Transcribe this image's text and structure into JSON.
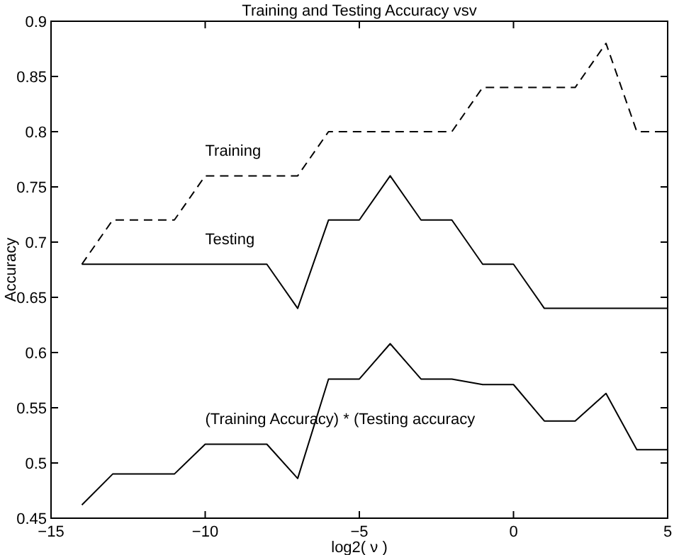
{
  "chart_data": {
    "type": "line",
    "title": "Training and Testing Accuracy vsv",
    "xlabel": "log2( ν )",
    "ylabel": "Accuracy",
    "x": [
      -14,
      -13,
      -12,
      -11,
      -10,
      -9,
      -8,
      -7,
      -6,
      -5,
      -4,
      -3,
      -2,
      -1,
      0,
      1,
      2,
      3,
      4,
      5
    ],
    "xlim": [
      -15,
      5
    ],
    "xticks": [
      -15,
      -10,
      -5,
      0,
      5
    ],
    "ylim": [
      0.45,
      0.9
    ],
    "yticks": [
      0.45,
      0.5,
      0.55,
      0.6,
      0.65,
      0.7,
      0.75,
      0.8,
      0.85,
      0.9
    ],
    "grid": false,
    "series": [
      {
        "name": "Training",
        "color": "#000000",
        "line_style": "dashed",
        "values": [
          0.68,
          0.72,
          0.72,
          0.72,
          0.76,
          0.76,
          0.76,
          0.76,
          0.8,
          0.8,
          0.8,
          0.8,
          0.8,
          0.84,
          0.84,
          0.84,
          0.84,
          0.88,
          0.8,
          0.8
        ]
      },
      {
        "name": "Testing",
        "color": "#000000",
        "line_style": "solid",
        "values": [
          0.68,
          0.68,
          0.68,
          0.68,
          0.68,
          0.68,
          0.68,
          0.64,
          0.72,
          0.72,
          0.76,
          0.72,
          0.72,
          0.68,
          0.68,
          0.64,
          0.64,
          0.64,
          0.64,
          0.64
        ]
      },
      {
        "name": "(Training Accuracy) * (Testing accuracy",
        "color": "#000000",
        "line_style": "solid",
        "values": [
          0.462,
          0.49,
          0.49,
          0.49,
          0.517,
          0.517,
          0.517,
          0.486,
          0.576,
          0.576,
          0.608,
          0.576,
          0.576,
          0.571,
          0.571,
          0.538,
          0.538,
          0.563,
          0.512,
          0.512
        ]
      }
    ]
  }
}
